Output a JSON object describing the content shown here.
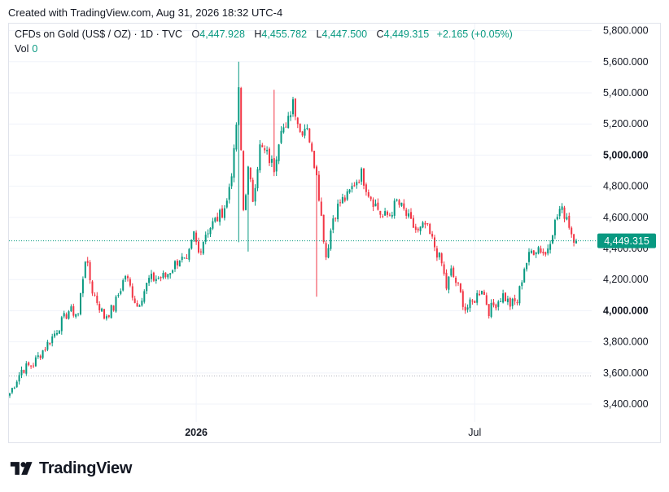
{
  "header": {
    "created_text": "Created with TradingView.com, Aug 31, 2026 18:32 UTC-4"
  },
  "legend": {
    "symbol": "CFDs on Gold (US$ / OZ) · 1D · TVC",
    "open_label": "O",
    "open_value": "4,447.928",
    "high_label": "H",
    "high_value": "4,455.782",
    "low_label": "L",
    "low_value": "4,447.500",
    "close_label": "C",
    "close_value": "4,449.315",
    "change": "+2.165 (+0.05%)",
    "vol_label": "Vol",
    "vol_value": "0"
  },
  "brand": {
    "name": "TradingView"
  },
  "colors": {
    "up": "#089981",
    "down": "#f23645",
    "grid": "#f0f3fa",
    "text": "#131722"
  },
  "chart_data": {
    "type": "candlestick",
    "y_ticks": [
      {
        "value": 3400,
        "label": "3,400.000"
      },
      {
        "value": 3600,
        "label": "3,600.000"
      },
      {
        "value": 3800,
        "label": "3,800.000"
      },
      {
        "value": 4000,
        "label": "4,000.000"
      },
      {
        "value": 4200,
        "label": "4,200.000"
      },
      {
        "value": 4400,
        "label": "4,400.000"
      },
      {
        "value": 4600,
        "label": "4,600.000"
      },
      {
        "value": 4800,
        "label": "4,800.000"
      },
      {
        "value": 5000,
        "label": "5,000.000"
      },
      {
        "value": 5200,
        "label": "5,200.000"
      },
      {
        "value": 5400,
        "label": "5,400.000"
      },
      {
        "value": 5600,
        "label": "5,600.000"
      },
      {
        "value": 5800,
        "label": "5,800.000"
      }
    ],
    "y_range": [
      3285,
      5845
    ],
    "bold_ticks": [
      4000,
      5000
    ],
    "x_ticks": [
      {
        "index": 79,
        "label": "2026",
        "bold": true
      },
      {
        "index": 197,
        "label": "Jul",
        "bold": false
      }
    ],
    "last_price": 4449.315,
    "last_price_label": "4,449.315",
    "lows_line": 3580,
    "grid": true,
    "anchors": [
      [
        0,
        3470
      ],
      [
        5,
        3620
      ],
      [
        10,
        3660
      ],
      [
        18,
        3830
      ],
      [
        25,
        4000
      ],
      [
        29,
        3980
      ],
      [
        32,
        4340
      ],
      [
        35,
        4130
      ],
      [
        40,
        3960
      ],
      [
        44,
        4020
      ],
      [
        49,
        4230
      ],
      [
        54,
        4030
      ],
      [
        59,
        4200
      ],
      [
        66,
        4220
      ],
      [
        72,
        4340
      ],
      [
        75,
        4300
      ],
      [
        78,
        4490
      ],
      [
        80,
        4370
      ],
      [
        83,
        4500
      ],
      [
        86,
        4560
      ],
      [
        89,
        4610
      ],
      [
        92,
        4700
      ],
      [
        95,
        5000
      ],
      [
        97,
        5400
      ],
      [
        99,
        4650
      ],
      [
        101,
        4900
      ],
      [
        103,
        4720
      ],
      [
        106,
        5050
      ],
      [
        109,
        5000
      ],
      [
        112,
        4920
      ],
      [
        115,
        5200
      ],
      [
        117,
        5150
      ],
      [
        120,
        5360
      ],
      [
        123,
        5150
      ],
      [
        126,
        5200
      ],
      [
        128,
        5000
      ],
      [
        130,
        4900
      ],
      [
        132,
        4600
      ],
      [
        134,
        4350
      ],
      [
        137,
        4600
      ],
      [
        140,
        4700
      ],
      [
        143,
        4730
      ],
      [
        146,
        4820
      ],
      [
        149,
        4880
      ],
      [
        152,
        4760
      ],
      [
        155,
        4680
      ],
      [
        158,
        4600
      ],
      [
        161,
        4620
      ],
      [
        164,
        4700
      ],
      [
        167,
        4640
      ],
      [
        170,
        4560
      ],
      [
        173,
        4500
      ],
      [
        176,
        4550
      ],
      [
        179,
        4450
      ],
      [
        183,
        4300
      ],
      [
        185,
        4150
      ],
      [
        187,
        4250
      ],
      [
        190,
        4150
      ],
      [
        193,
        4010
      ],
      [
        196,
        4050
      ],
      [
        200,
        4150
      ],
      [
        203,
        4000
      ],
      [
        206,
        4050
      ],
      [
        209,
        4100
      ],
      [
        212,
        4040
      ],
      [
        215,
        4060
      ],
      [
        218,
        4280
      ],
      [
        221,
        4380
      ],
      [
        224,
        4410
      ],
      [
        227,
        4360
      ],
      [
        230,
        4520
      ],
      [
        233,
        4650
      ],
      [
        236,
        4610
      ],
      [
        238,
        4500
      ],
      [
        240,
        4449.315
      ]
    ],
    "spikes": [
      [
        97,
        5600,
        4440
      ],
      [
        101,
        4520,
        4380
      ],
      [
        130,
        4090,
        4900
      ],
      [
        112,
        5420,
        4900
      ]
    ],
    "n_bars": 241,
    "note_units": "USD per troy ounce"
  }
}
